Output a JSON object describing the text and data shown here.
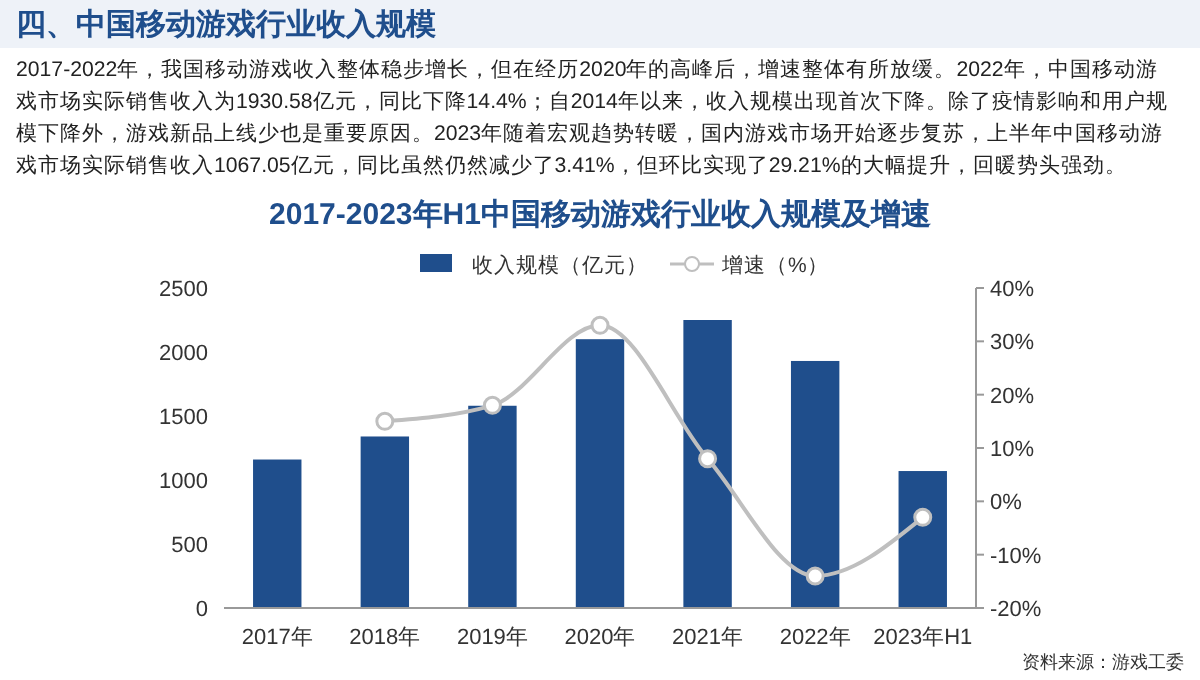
{
  "chart_data": {
    "type": "bar",
    "title": "2017-2023年H1中国移动游戏行业收入规模及增速",
    "annotations": [
      "四、中国移动游戏行业收入规模",
      "2017-2022年，我国移动游戏收入整体稳步增长，但在经历2020年的高峰后，增速整体有所放缓。2022年，中国移动游戏市场实际销售收入为1930.58亿元，同比下降14.4%；自2014年以来，收入规模出现首次下降。除了疫情影响和用户规模下降外，游戏新品上线少也是重要原因。2023年随着宏观趋势转暖，国内游戏市场开始逐步复苏，上半年中国移动游戏市场实际销售收入1067.05亿元，同比虽然仍然减少了3.41%，但环比实现了29.21%的大幅提升，回暖势头强劲。",
      "资料来源：游戏工委"
    ],
    "categories": [
      "2017年",
      "2018年",
      "2019年",
      "2020年",
      "2021年",
      "2022年",
      "2023年H1"
    ],
    "series": [
      {
        "name": "收入规模（亿元）",
        "color": "#1f4e8c",
        "values": [
          1160,
          1340,
          1580,
          2100,
          2250,
          1930,
          1070
        ]
      },
      {
        "name": "增速（%）",
        "type": "line",
        "axis": "y2",
        "color": "#bfbfbf",
        "marker": "circle",
        "values": [
          null,
          15,
          18,
          33,
          8,
          -14,
          -3
        ]
      }
    ],
    "ylim": [
      0,
      2500
    ],
    "yticks": [
      0,
      500,
      1000,
      1500,
      2000,
      2500
    ],
    "y2lim": [
      -20,
      40
    ],
    "y2ticks": [
      {
        "value": -20,
        "label": "-20%"
      },
      {
        "value": -10,
        "label": "-10%"
      },
      {
        "value": 0,
        "label": "0%"
      },
      {
        "value": 10,
        "label": "10%"
      },
      {
        "value": 20,
        "label": "20%"
      },
      {
        "value": 30,
        "label": "30%"
      },
      {
        "value": 40,
        "label": "40%"
      }
    ],
    "legend": "top",
    "grid": false
  }
}
